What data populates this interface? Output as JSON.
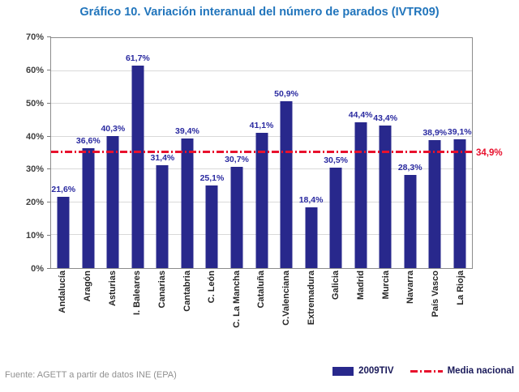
{
  "chart_data": {
    "type": "bar",
    "title": "Gráfico 10. Variación interanual del número de parados (IVTR09)",
    "categories": [
      "Andalucía",
      "Aragón",
      "Asturias",
      "I. Baleares",
      "Canarias",
      "Cantabria",
      "C. León",
      "C. La Mancha",
      "Cataluña",
      "C.Valenciana",
      "Extremadura",
      "Galicia",
      "Madrid",
      "Murcia",
      "Navarra",
      "País Vasco",
      "La Rioja"
    ],
    "values": [
      21.6,
      36.6,
      40.3,
      61.7,
      31.4,
      39.4,
      25.1,
      30.7,
      41.1,
      50.9,
      18.4,
      30.5,
      44.4,
      43.4,
      28.3,
      38.9,
      39.1
    ],
    "labels": [
      "21,6%",
      "36,6%",
      "40,3%",
      "61,7%",
      "31,4%",
      "39,4%",
      "25,1%",
      "30,7%",
      "41,1%",
      "50,9%",
      "18,4%",
      "30,5%",
      "44,4%",
      "43,4%",
      "28,3%",
      "38,9%",
      "39,1%"
    ],
    "ylim": [
      0,
      70
    ],
    "ytick_step": 10,
    "ytick_suffix": "%",
    "grid": "horizontal",
    "legend_position": "bottom-right",
    "media": {
      "value": 34.9,
      "label": "34,9%",
      "name": "Media nacional"
    },
    "legend": {
      "series": "2009TIV",
      "media": "Media nacional"
    },
    "colors": {
      "bar": "#28288C",
      "line": "#E8112D",
      "title": "#2175BC",
      "value_label": "#2A2AA0"
    }
  },
  "footer": {
    "source": "Fuente: AGETT a partir de datos INE (EPA)"
  }
}
